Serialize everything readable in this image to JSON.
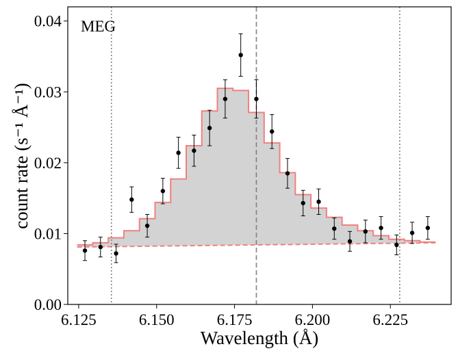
{
  "chart_data": {
    "type": "histogram-with-errorbars",
    "annotation": "MEG",
    "xlabel": "Wavelength (Å)",
    "ylabel": "count rate (s⁻¹ Å⁻¹)",
    "xlim": [
      6.1215,
      6.2445
    ],
    "ylim": [
      0.0,
      0.042
    ],
    "xticks": [
      6.125,
      6.15,
      6.175,
      6.2,
      6.225
    ],
    "xtick_labels": [
      "6.125",
      "6.150",
      "6.175",
      "6.200",
      "6.225"
    ],
    "yticks": [
      0.0,
      0.01,
      0.02,
      0.03,
      0.04
    ],
    "ytick_labels": [
      "0.00",
      "0.01",
      "0.02",
      "0.03",
      "0.04"
    ],
    "vlines": [
      {
        "x": 6.1355,
        "style": "dotted"
      },
      {
        "x": 6.182,
        "style": "dashed"
      },
      {
        "x": 6.228,
        "style": "dotted"
      }
    ],
    "continuum": {
      "x": [
        6.1245,
        6.2395
      ],
      "y": [
        0.0081,
        0.0087
      ]
    },
    "model": {
      "bin_edges": [
        6.1245,
        6.1295,
        6.1345,
        6.1395,
        6.1445,
        6.1495,
        6.1545,
        6.1595,
        6.1645,
        6.1695,
        6.1745,
        6.1795,
        6.1845,
        6.1895,
        6.1945,
        6.1995,
        6.2045,
        6.2095,
        6.2145,
        6.2195,
        6.2245,
        6.2295,
        6.2345,
        6.2395
      ],
      "values": [
        0.0084,
        0.0087,
        0.0094,
        0.0104,
        0.0121,
        0.0144,
        0.0177,
        0.0224,
        0.0273,
        0.0305,
        0.0302,
        0.0271,
        0.0228,
        0.0186,
        0.0155,
        0.0136,
        0.0123,
        0.0112,
        0.0104,
        0.0097,
        0.0092,
        0.009,
        0.0088
      ]
    },
    "data_points": {
      "x": [
        6.127,
        6.132,
        6.137,
        6.142,
        6.147,
        6.152,
        6.157,
        6.162,
        6.167,
        6.172,
        6.177,
        6.182,
        6.187,
        6.192,
        6.197,
        6.202,
        6.207,
        6.212,
        6.217,
        6.222,
        6.227,
        6.232,
        6.237
      ],
      "y": [
        0.0076,
        0.0081,
        0.0072,
        0.0148,
        0.0111,
        0.016,
        0.0214,
        0.0217,
        0.0249,
        0.029,
        0.0352,
        0.029,
        0.0244,
        0.0185,
        0.0143,
        0.0145,
        0.0107,
        0.0089,
        0.0103,
        0.0108,
        0.0084,
        0.0101,
        0.0108
      ],
      "yerr": [
        0.0014,
        0.0014,
        0.0013,
        0.0018,
        0.0016,
        0.0018,
        0.0022,
        0.0022,
        0.0025,
        0.0027,
        0.003,
        0.0027,
        0.0024,
        0.0021,
        0.0018,
        0.0018,
        0.0015,
        0.0014,
        0.0016,
        0.0016,
        0.0014,
        0.0015,
        0.0016
      ]
    },
    "colors": {
      "model_line": "#f08080",
      "model_fill": "#d3d3d3",
      "points": "#000000",
      "vlines": "#808080"
    }
  }
}
